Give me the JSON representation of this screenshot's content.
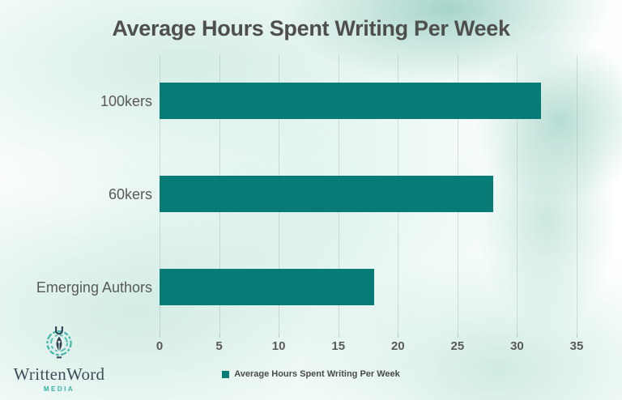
{
  "title": "Average Hours Spent Writing Per Week",
  "chart_data": {
    "type": "bar",
    "orientation": "horizontal",
    "title": "Average Hours Spent Writing Per Week",
    "categories": [
      "100kers",
      "60kers",
      "Emerging Authors"
    ],
    "values": [
      32,
      28,
      18
    ],
    "xlabel": "",
    "ylabel": "",
    "xlim": [
      0,
      35
    ],
    "xticks": [
      0,
      5,
      10,
      15,
      20,
      25,
      30,
      35
    ],
    "grid": "vertical-light",
    "legend_position": "bottom",
    "bar_color": "#077C76"
  },
  "legend": {
    "label": "Average Hours Spent Writing Per Week",
    "swatch_color": "#077C76"
  },
  "logo": {
    "brand": "WrittenWord",
    "subtitle": "MEDIA",
    "icon": "pen-nib-circle-icon",
    "brand_color": "#3C4D59",
    "accent_color": "#33B3A4"
  },
  "colors": {
    "bar": "#077C76",
    "title_text": "#4F4F4F",
    "axis_text": "#595959",
    "background_tint": "#D9EFE8"
  }
}
